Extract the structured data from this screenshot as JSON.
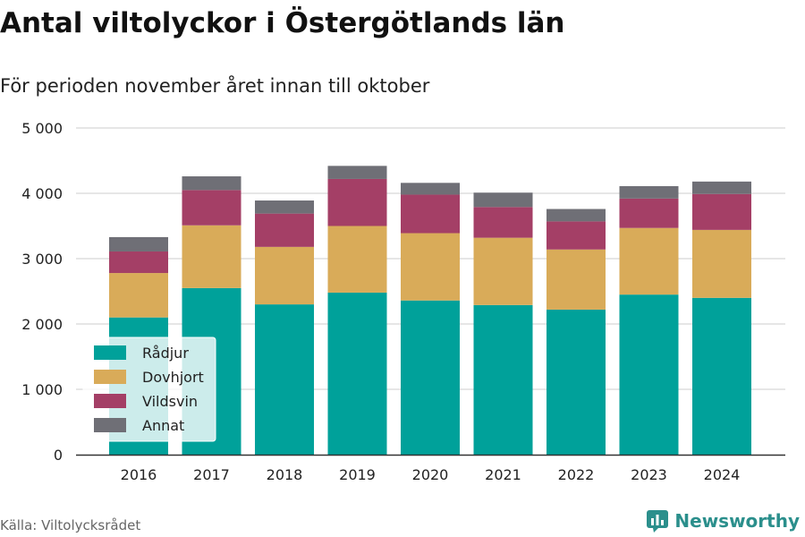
{
  "title": "Antal viltolyckor i Östergötlands län",
  "subtitle": "För perioden november året innan till oktober",
  "source": "Källa: Viltolycksrådet",
  "brand": "Newsworthy",
  "colors": {
    "Rådjur": "#00a19a",
    "Dovhjort": "#d9ab59",
    "Vildsvin": "#a43f66",
    "Annat": "#6f6f76",
    "grid": "#dddddd",
    "brand": "#2b8f8c"
  },
  "chart_data": {
    "type": "bar",
    "stacked": true,
    "categories": [
      "2016",
      "2017",
      "2018",
      "2019",
      "2020",
      "2021",
      "2022",
      "2023",
      "2024"
    ],
    "series": [
      {
        "name": "Rådjur",
        "values": [
          2100,
          2550,
          2300,
          2480,
          2360,
          2290,
          2220,
          2450,
          2400
        ]
      },
      {
        "name": "Dovhjort",
        "values": [
          680,
          960,
          880,
          1020,
          1030,
          1030,
          920,
          1020,
          1040
        ]
      },
      {
        "name": "Vildsvin",
        "values": [
          330,
          540,
          510,
          720,
          590,
          470,
          430,
          450,
          550
        ]
      },
      {
        "name": "Annat",
        "values": [
          220,
          210,
          200,
          200,
          180,
          220,
          190,
          190,
          190
        ]
      }
    ],
    "ylim": [
      0,
      5000
    ],
    "yticks": [
      0,
      1000,
      2000,
      3000,
      4000,
      5000
    ],
    "ytick_labels": [
      "0",
      "1 000",
      "2 000",
      "3 000",
      "4 000",
      "5 000"
    ],
    "grid": true,
    "legend_position": "bottom-left"
  }
}
